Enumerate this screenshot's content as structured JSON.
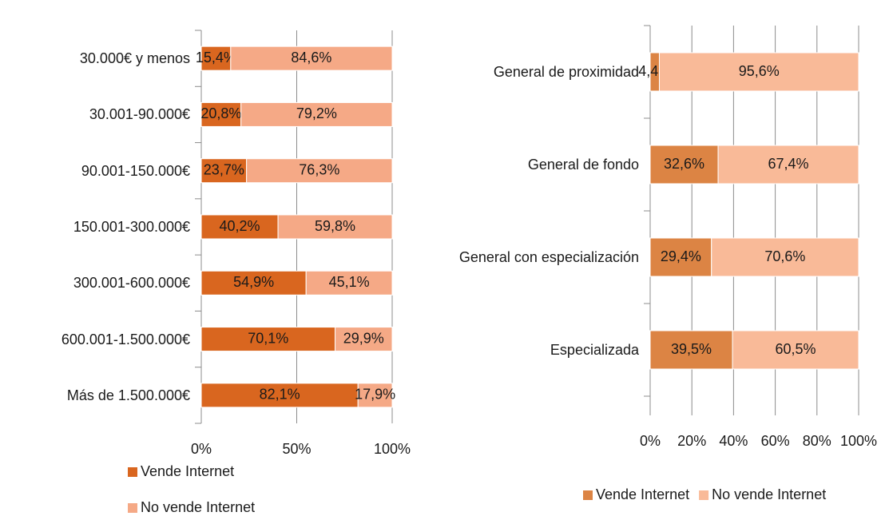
{
  "chart_data": [
    {
      "type": "stacked_barh",
      "categories": [
        "30.000€ y menos",
        "30.001-90.000€",
        "90.001-150.000€",
        "150.001-300.000€",
        "300.001-600.000€",
        "600.001-1.500.000€",
        "Más de 1.500.000€"
      ],
      "series": [
        {
          "name": "Vende Internet",
          "color": "#d9661f",
          "values": [
            15.4,
            20.8,
            23.7,
            40.2,
            54.9,
            70.1,
            82.1
          ],
          "value_labels": [
            "15,4%",
            "20,8%",
            "23,7%",
            "40,2%",
            "54,9%",
            "70,1%",
            "82,1%"
          ]
        },
        {
          "name": "No vende Internet",
          "color": "#f5a986",
          "values": [
            84.6,
            79.2,
            76.3,
            59.8,
            45.1,
            29.9,
            17.9
          ],
          "value_labels": [
            "84,6%",
            "79,2%",
            "76,3%",
            "59,8%",
            "45,1%",
            "29,9%",
            "17,9%"
          ]
        }
      ],
      "xlim": [
        0,
        100
      ],
      "xticks": [
        {
          "value": 0,
          "label": "0%"
        },
        {
          "value": 50,
          "label": "50%"
        },
        {
          "value": 100,
          "label": "100%"
        }
      ],
      "grid": true,
      "legend": "bottom"
    },
    {
      "type": "stacked_barh",
      "categories": [
        "General de proximidad",
        "General de fondo",
        "General con especialización",
        "Especializada"
      ],
      "series": [
        {
          "name": "Vende Internet",
          "color": "#dc8444",
          "values": [
            4.4,
            32.6,
            29.4,
            39.5
          ],
          "value_labels": [
            "4,4%",
            "32,6%",
            "29,4%",
            "39,5%"
          ]
        },
        {
          "name": "No vende Internet",
          "color": "#f9ba98",
          "values": [
            95.6,
            67.4,
            70.6,
            60.5
          ],
          "value_labels": [
            "95,6%",
            "67,4%",
            "70,6%",
            "60,5%"
          ]
        }
      ],
      "xlim": [
        0,
        100
      ],
      "xticks": [
        {
          "value": 0,
          "label": "0%"
        },
        {
          "value": 20,
          "label": "20%"
        },
        {
          "value": 40,
          "label": "40%"
        },
        {
          "value": 60,
          "label": "60%"
        },
        {
          "value": 80,
          "label": "80%"
        },
        {
          "value": 100,
          "label": "100%"
        }
      ],
      "grid": true,
      "legend": "bottom"
    }
  ]
}
